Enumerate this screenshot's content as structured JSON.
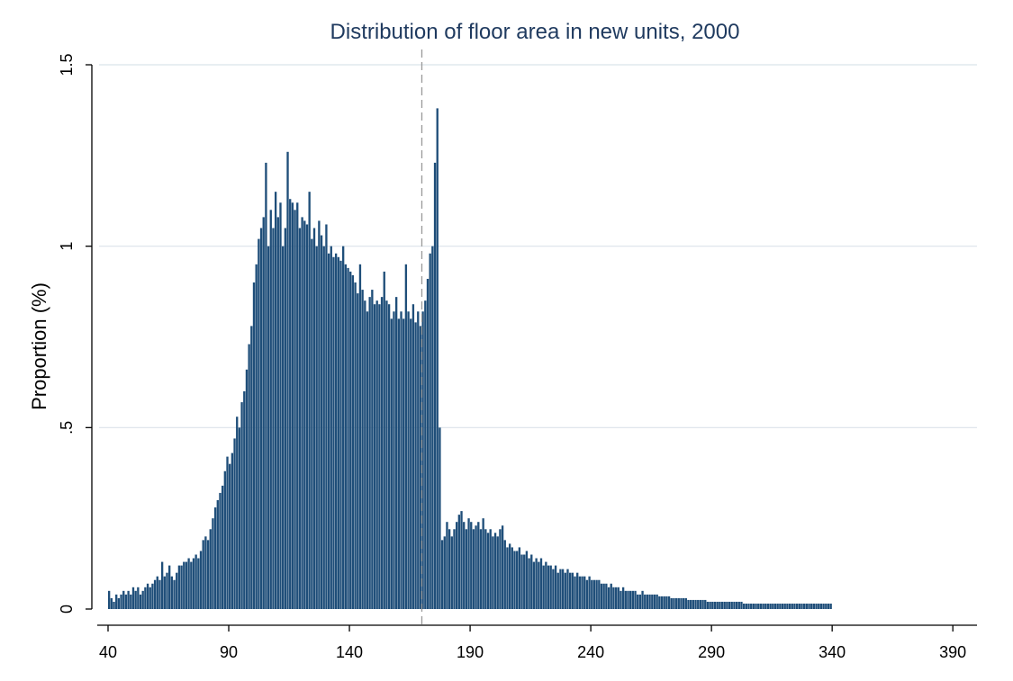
{
  "chart_data": {
    "type": "bar",
    "title": "Distribution of floor area in new units, 2000",
    "xlabel": "",
    "ylabel": "Proportion (%)",
    "xlim": [
      40,
      400
    ],
    "ylim": [
      0,
      1.5
    ],
    "x_ticks": [
      "40",
      "90",
      "140",
      "190",
      "240",
      "290",
      "340",
      "390"
    ],
    "x_tick_values": [
      40,
      90,
      140,
      190,
      240,
      290,
      340,
      390
    ],
    "y_ticks": [
      "0",
      ".5",
      "1",
      "1.5"
    ],
    "y_tick_values": [
      0,
      0.5,
      1,
      1.5
    ],
    "grid": true,
    "reference_line_x": 170,
    "bin_width": 1,
    "colors": {
      "bar": "#1f4e79",
      "grid": "#dbe3ea",
      "ref_line": "#9a9a9a",
      "axis": "#000000"
    },
    "series": [
      {
        "x_start": 40,
        "values": [
          0.05,
          0.03,
          0.02,
          0.04,
          0.03,
          0.04,
          0.05,
          0.04,
          0.05,
          0.04,
          0.06,
          0.05,
          0.06,
          0.04,
          0.05,
          0.06,
          0.07,
          0.06,
          0.07,
          0.08,
          0.09,
          0.08,
          0.13,
          0.09,
          0.1,
          0.12,
          0.09,
          0.08,
          0.1,
          0.12,
          0.12,
          0.13,
          0.13,
          0.14,
          0.13,
          0.14,
          0.15,
          0.14,
          0.16,
          0.19,
          0.2,
          0.19,
          0.22,
          0.25,
          0.28,
          0.3,
          0.32,
          0.34,
          0.38,
          0.42,
          0.4,
          0.43,
          0.47,
          0.53,
          0.5,
          0.57,
          0.6,
          0.66,
          0.73,
          0.78,
          0.9,
          0.95,
          1.02,
          1.05,
          1.08,
          1.23,
          1.0,
          1.1,
          1.05,
          1.15,
          1.08,
          1.12,
          1.0,
          1.05,
          1.26,
          1.13,
          1.12,
          1.1,
          1.12,
          1.05,
          1.08,
          1.07,
          1.06,
          1.15,
          1.02,
          1.05,
          1.0,
          1.07,
          1.03,
          1.0,
          1.06,
          0.98,
          1.0,
          0.97,
          0.98,
          0.97,
          0.96,
          1.0,
          0.95,
          0.94,
          0.93,
          0.92,
          0.9,
          0.87,
          0.95,
          0.88,
          0.85,
          0.82,
          0.86,
          0.88,
          0.84,
          0.85,
          0.84,
          0.86,
          0.93,
          0.85,
          0.84,
          0.8,
          0.82,
          0.86,
          0.8,
          0.82,
          0.8,
          0.95,
          0.82,
          0.8,
          0.84,
          0.79,
          0.82,
          0.78,
          0.82,
          0.85,
          0.91,
          0.98,
          1.0,
          1.23,
          1.38,
          0.5,
          0.19,
          0.2,
          0.24,
          0.22,
          0.2,
          0.22,
          0.24,
          0.26,
          0.27,
          0.24,
          0.22,
          0.25,
          0.24,
          0.22,
          0.23,
          0.24,
          0.22,
          0.25,
          0.22,
          0.21,
          0.22,
          0.2,
          0.21,
          0.2,
          0.22,
          0.23,
          0.19,
          0.17,
          0.18,
          0.17,
          0.16,
          0.16,
          0.17,
          0.15,
          0.15,
          0.16,
          0.14,
          0.15,
          0.13,
          0.14,
          0.13,
          0.14,
          0.12,
          0.13,
          0.12,
          0.12,
          0.11,
          0.12,
          0.1,
          0.11,
          0.11,
          0.1,
          0.11,
          0.1,
          0.1,
          0.09,
          0.1,
          0.09,
          0.09,
          0.09,
          0.08,
          0.09,
          0.08,
          0.08,
          0.08,
          0.08,
          0.07,
          0.07,
          0.07,
          0.06,
          0.07,
          0.06,
          0.06,
          0.06,
          0.05,
          0.06,
          0.05,
          0.05,
          0.05,
          0.05,
          0.05,
          0.04,
          0.04,
          0.05,
          0.04,
          0.04,
          0.04,
          0.04,
          0.04,
          0.04,
          0.035,
          0.035,
          0.035,
          0.035,
          0.035,
          0.03,
          0.03,
          0.03,
          0.03,
          0.03,
          0.03,
          0.03,
          0.025,
          0.025,
          0.025,
          0.025,
          0.025,
          0.025,
          0.025,
          0.025,
          0.02,
          0.02,
          0.02,
          0.02,
          0.02,
          0.02,
          0.02,
          0.02,
          0.02,
          0.02,
          0.02,
          0.02,
          0.02,
          0.02,
          0.02,
          0.015,
          0.015,
          0.015,
          0.015,
          0.015,
          0.015,
          0.015,
          0.015,
          0.015,
          0.015,
          0.015,
          0.015,
          0.015,
          0.015,
          0.015,
          0.015,
          0.015,
          0.015,
          0.015,
          0.015,
          0.015,
          0.015,
          0.015,
          0.015,
          0.015,
          0.015,
          0.015,
          0.015,
          0.015,
          0.015,
          0.015,
          0.015,
          0.015,
          0.015,
          0.015,
          0.015,
          0.015
        ]
      }
    ]
  }
}
